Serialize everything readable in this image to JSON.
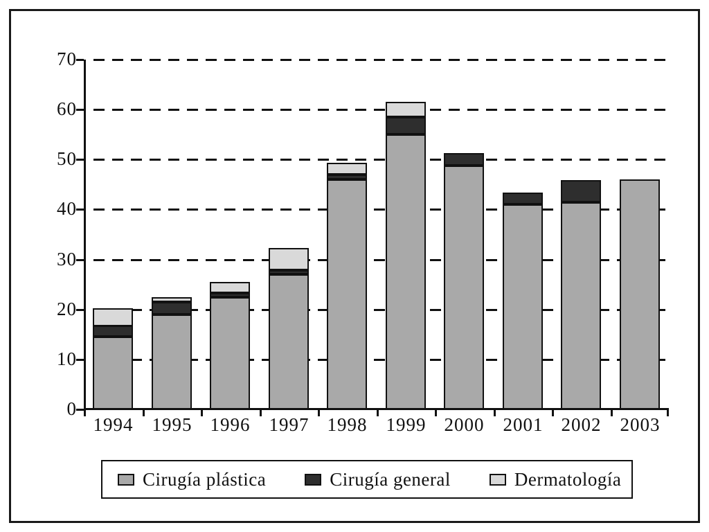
{
  "chart_data": {
    "type": "bar",
    "stacked": true,
    "title": "",
    "xlabel": "",
    "ylabel": "",
    "categories": [
      "1994",
      "1995",
      "1996",
      "1997",
      "1998",
      "1999",
      "2000",
      "2001",
      "2002",
      "2003"
    ],
    "series": [
      {
        "name": "Cirugía plástica",
        "color": "#a9a9a9",
        "values": [
          14.5,
          19.0,
          22.5,
          27.0,
          46.0,
          55.0,
          48.8,
          41.0,
          41.5,
          46.0
        ]
      },
      {
        "name": "Cirugía general",
        "color": "#2e2e2e",
        "values": [
          2.2,
          2.5,
          0.8,
          0.8,
          1.0,
          3.5,
          2.5,
          2.3,
          4.5,
          0.0
        ]
      },
      {
        "name": "Dermatología",
        "color": "#d9d9d9",
        "values": [
          3.6,
          1.0,
          2.2,
          4.5,
          2.3,
          3.0,
          0.0,
          0.0,
          0.0,
          0.0
        ]
      }
    ],
    "ylim": [
      0,
      70
    ],
    "ytick_step": 10,
    "ytick_labels": [
      "0",
      "10",
      "20",
      "30",
      "40",
      "50",
      "60",
      "70"
    ],
    "grid": "horizontal-dashed",
    "legend_position": "bottom",
    "frame_color": "#1a1a1a",
    "background": "#ffffff"
  }
}
